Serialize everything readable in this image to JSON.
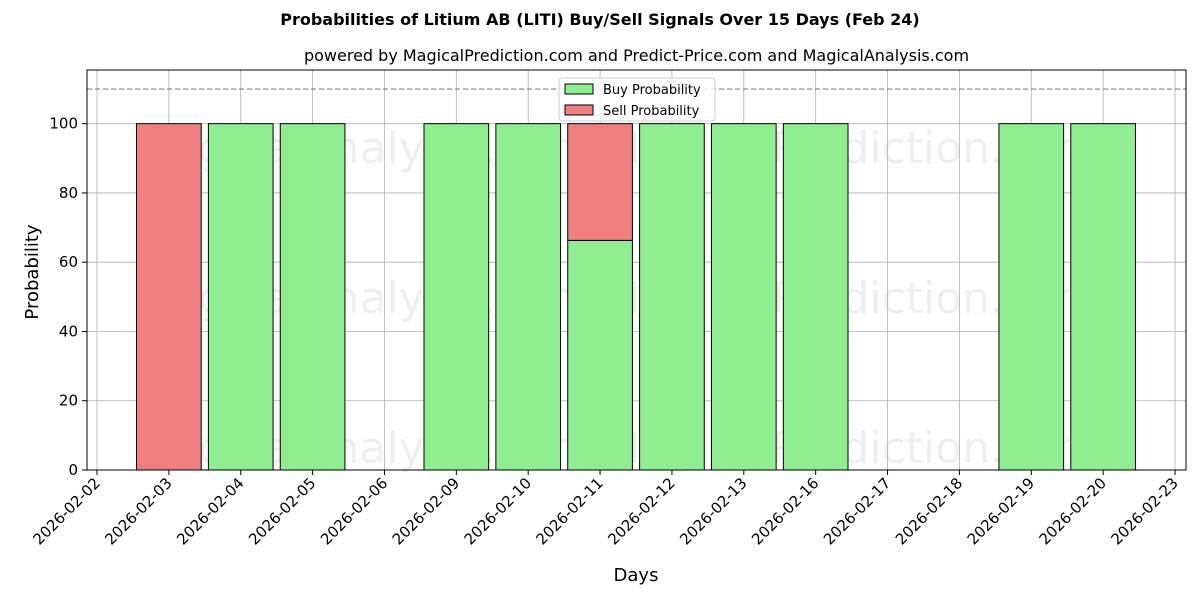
{
  "header": {
    "title": "Probabilities of Litium AB (LITI) Buy/Sell Signals Over 15 Days (Feb 24)",
    "subtitle": "powered by MagicalPrediction.com and Predict-Price.com and MagicalAnalysis.com"
  },
  "watermarks": [
    "MagicalAnalysis.com",
    "MagicalPrediction.com"
  ],
  "colors": {
    "buy": "#90ee90",
    "sell": "#f08080",
    "edge": "#000000",
    "grid": "#b0b0b0",
    "threshold": "#808080"
  },
  "chart_data": {
    "type": "bar",
    "stacked": true,
    "title": "Probabilities of Litium AB (LITI) Buy/Sell Signals Over 15 Days (Feb 24)",
    "subtitle": "powered by MagicalPrediction.com and Predict-Price.com and MagicalAnalysis.com",
    "xlabel": "Days",
    "ylabel": "Probability",
    "ylim": [
      0,
      115.5
    ],
    "yticks": [
      0,
      20,
      40,
      60,
      80,
      100
    ],
    "grid": true,
    "legend_position": "upper center",
    "threshold_line": {
      "y": 110,
      "style": "dashed"
    },
    "categories": [
      "2026-02-02",
      "2026-02-03",
      "2026-02-04",
      "2026-02-05",
      "2026-02-06",
      "2026-02-09",
      "2026-02-10",
      "2026-02-11",
      "2026-02-12",
      "2026-02-13",
      "2026-02-16",
      "2026-02-17",
      "2026-02-18",
      "2026-02-19",
      "2026-02-20",
      "2026-02-23"
    ],
    "series": [
      {
        "name": "Buy Probability",
        "values": [
          0,
          0,
          100,
          100,
          0,
          100,
          100,
          66.3,
          100,
          100,
          100,
          0,
          0,
          100,
          100,
          0
        ]
      },
      {
        "name": "Sell Probability",
        "values": [
          0,
          100,
          0,
          0,
          0,
          0,
          0,
          33.7,
          0,
          0,
          0,
          0,
          0,
          0,
          0,
          0
        ]
      }
    ]
  }
}
